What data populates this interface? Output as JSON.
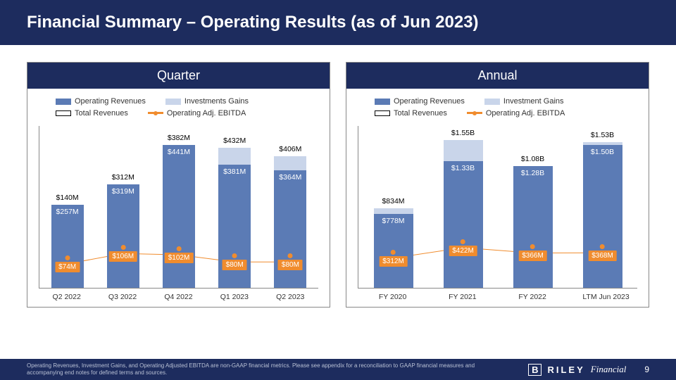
{
  "title": "Financial Summary – Operating Results (as of Jun 2023)",
  "colors": {
    "navy": "#1d2c5e",
    "bar_op": "#5b7bb5",
    "bar_inv": "#c9d5ea",
    "ebitda": "#f08c2e",
    "axis": "#888888",
    "text": "#333333"
  },
  "legend": {
    "op_rev": "Operating Revenues",
    "inv_gains_q": "Investments Gains",
    "inv_gains_a": "Investment Gains",
    "tot_rev": "Total Revenues",
    "ebitda": "Operating Adj. EBITDA"
  },
  "quarterly": {
    "header": "Quarter",
    "ymax": 500,
    "categories": [
      "Q2 2022",
      "Q3 2022",
      "Q4 2022",
      "Q1 2023",
      "Q2 2023"
    ],
    "op_rev": [
      257,
      319,
      441,
      381,
      364
    ],
    "total": [
      140,
      312,
      382,
      432,
      406
    ],
    "op_labels": [
      "$257M",
      "$319M",
      "$441M",
      "$381M",
      "$364M"
    ],
    "tot_labels": [
      "$140M",
      "$312M",
      "$382M",
      "$432M",
      "$406M"
    ],
    "ebitda": [
      74,
      106,
      102,
      80,
      80
    ],
    "ebitda_labels": [
      "$74M",
      "$106M",
      "$102M",
      "$80M",
      "$80M"
    ]
  },
  "annual": {
    "header": "Annual",
    "ymax": 1700,
    "categories": [
      "FY 2020",
      "FY 2021",
      "FY 2022",
      "LTM Jun 2023"
    ],
    "op_rev": [
      778,
      1330,
      1280,
      1500
    ],
    "total": [
      834,
      1550,
      1080,
      1530
    ],
    "op_labels": [
      "$778M",
      "$1.33B",
      "$1.28B",
      "$1.50B"
    ],
    "tot_labels": [
      "$834M",
      "$1.55B",
      "$1.08B",
      "$1.53B"
    ],
    "ebitda": [
      312,
      422,
      366,
      368
    ],
    "ebitda_labels": [
      "$312M",
      "$422M",
      "$366M",
      "$368M"
    ]
  },
  "footer": {
    "disclaimer": "Operating Revenues, Investment Gains, and Operating Adjusted EBITDA are non-GAAP financial metrics. Please see appendix for a reconciliation to GAAP financial measures and accompanying end notes for defined terms and sources.",
    "brand_b": "B",
    "brand_riley": "RILEY",
    "brand_fin": "Financial",
    "page": "9"
  }
}
